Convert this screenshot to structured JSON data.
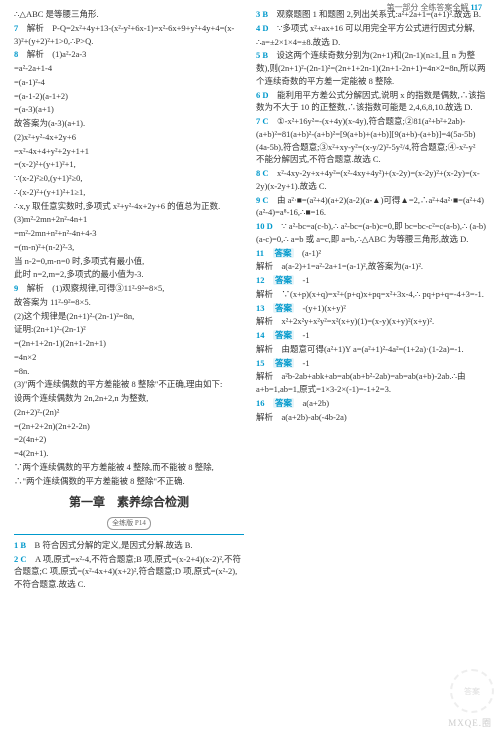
{
  "header": {
    "part": "第一部分",
    "title": "全练答案全解",
    "page": "117"
  },
  "left": [
    {
      "t": "∴△ABC 是等腰三角形."
    },
    {
      "n": "7",
      "t": "解析　P-Q=2x²+4y+13-(x²-y²+6x-1)=x²-6x+9+y²+4y+4=(x-3)²+(y+2)²+1>0,∴P>Q."
    },
    {
      "n": "8",
      "t": "解析　(1)a²-2a-3"
    },
    {
      "t": "=a²-2a+1-4"
    },
    {
      "t": "=(a-1)²-4"
    },
    {
      "t": "=(a-1-2)(a-1+2)"
    },
    {
      "t": "=(a-3)(a+1)"
    },
    {
      "t": "故答案为(a-3)(a+1)."
    },
    {
      "t": "(2)x²+y²-4x+2y+6"
    },
    {
      "t": "=x²-4x+4+y²+2y+1+1"
    },
    {
      "t": "=(x-2)²+(y+1)²+1,"
    },
    {
      "t": "∵(x-2)²≥0,(y+1)²≥0,"
    },
    {
      "t": "∴(x-2)²+(y+1)²+1≥1,"
    },
    {
      "t": "∴x,y 取任意实数时,多项式 x²+y²-4x+2y+6 的值总为正数."
    },
    {
      "t": "(3)m²-2mn+2n²-4n+1"
    },
    {
      "t": "=m²-2mn+n²+n²-4n+4-3"
    },
    {
      "t": "=(m-n)²+(n-2)²-3,"
    },
    {
      "t": "当 n-2=0,m-n=0 时,多项式有最小值,"
    },
    {
      "t": "此时 n=2,m=2,多项式的最小值为-3."
    },
    {
      "n": "9",
      "t": "解析　(1)观察规律,可得③11²-9²=8×5,"
    },
    {
      "t": "故答案为 11²-9²=8×5."
    },
    {
      "t": "(2)这个规律是(2n+1)²-(2n-1)²=8n,"
    },
    {
      "t": "证明:(2n+1)²-(2n-1)²"
    },
    {
      "t": "=(2n+1+2n-1)(2n+1-2n+1)"
    },
    {
      "t": "=4n×2"
    },
    {
      "t": "=8n."
    },
    {
      "t": "(3)\"两个连续偶数的平方差能被 8 整除\"不正确,理由如下:"
    },
    {
      "t": "设两个连续偶数为 2n,2n+2,n 为整数,"
    },
    {
      "t": "(2n+2)²-(2n)²"
    },
    {
      "t": "=(2n+2+2n)(2n+2-2n)"
    },
    {
      "t": "=2(4n+2)"
    },
    {
      "t": "=4(2n+1)."
    },
    {
      "t": "∵两个连续偶数的平方差能被 4 整除,而不能被 8 整除,"
    },
    {
      "t": "∴\"两个连续偶数的平方差能被 8 整除\"不正确."
    }
  ],
  "chapter": {
    "title": "第一章　素养综合检测",
    "badge": "全练版 P14"
  },
  "leftBottom": [
    {
      "n": "1 B",
      "t": "B 符合因式分解的定义,是因式分解.故选 B."
    },
    {
      "n": "2 C",
      "t": "A 项,原式=x²-4,不符合题意;B 项,原式=(x-2+4)(x-2)²,不符合题意;C 项,原式=(x²-4x+4)(x+2)²,符合题意;D 项,原式=(x²-2),不符合题意.故选 C."
    }
  ],
  "right": [
    {
      "n": "3 B",
      "t": "观察题图 1 和题图 2,列出关系式:a²+2a+1=(a+1)².故选 B."
    },
    {
      "n": "4 D",
      "t": "∵多项式 x²+ax+16 可以用完全平方公式进行因式分解,"
    },
    {
      "t": "∴a=±2×1×4=±8.故选 D."
    },
    {
      "n": "5 B",
      "t": "设这两个连续奇数分别为(2n+1)和(2n-1)(n≥1,且 n 为整数),则(2n+1)²-(2n-1)²=(2n+1+2n-1)(2n+1-2n+1)=4n×2=8n,所以两个连续奇数的平方差一定能被 8 整除."
    },
    {
      "n": "6 D",
      "t": "能利用平方差公式分解因式,说明 x 的指数是偶数,∴该指数为不大于 10 的正整数,∴该指数可能是 2,4,6,8,10.故选 D."
    },
    {
      "n": "7 C",
      "t": "①-x²+16y²=-(x+4y)(x-4y),符合题意;②81(a²+b²+2ab)-(a+b)²=81(a+b)²-(a+b)²=[9(a+b)+(a+b)][9(a+b)-(a+b)]=4(5a-5b)(4a-5b),符合题意;③x²+xy-y²=(x-y/2)²-5y²/4,符合题意;④-x²-y² 不能分解因式,不符合题意.故选 C."
    },
    {
      "n": "8 C",
      "t": "x²-4xy-2y+x+4y²=(x²-4xy+4y²)+(x-2y)=(x-2y)²+(x-2y)=(x-2y)(x-2y+1).故选 C."
    },
    {
      "n": "9 C",
      "t": "由 a²·■=(a²+4)(a+2)(a-2)(a-▲)可得▲=2,∴a²+4a²·■=(a²+4)(a²-4)=a⁸-16,∴■=16."
    },
    {
      "n": "10 D",
      "t": "∵ a²-bc=a(c-b),∴ a²-bc=(a-b)c=0,即 bc=bc-c²=c(a-b),∴ (a-b)(a-c)=0,∴ a=b 或 a=c,即 a=b,∴△ABC 为等腰三角形,故选 D."
    },
    {
      "n": "11",
      "a": "(a-1)²",
      "exp": "解析　a(a-2)+1=a²-2a+1=(a-1)²,故答案为(a-1)²."
    },
    {
      "n": "12",
      "a": "-1",
      "exp": "解析　∵(x+p)(x+q)=x²+(p+q)x+pq=x²+3x-4,∴ pq+p+q=-4+3=-1."
    },
    {
      "n": "13",
      "a": "-(y+1)(x+y)²",
      "exp": "解析　x²+2x²y+x²y²=x²(x+y)(1)=(x-y)(x+y)²(x+y)²."
    },
    {
      "n": "14",
      "a": "-1",
      "exp": "解析　由题意可得(a²+1)Y a=(a²+1)²-4a²=(1+2a)·(1-2a)=-1."
    },
    {
      "n": "15",
      "a": "-1",
      "exp": "解析　a²b-2ab+abk+ab=ab(ab+b²-2ab)=ab=ab(a+b)-2ab.∴由 a+b=1,ab=1,原式=1×3-2×(-1)=-1+2=3."
    },
    {
      "n": "16",
      "a": "a(a+2b)",
      "exp": "解析　a(a+2b)-ab(-4b-2a)"
    }
  ],
  "watermark": {
    "site": "MXQE.圈",
    "corner": "答案"
  }
}
